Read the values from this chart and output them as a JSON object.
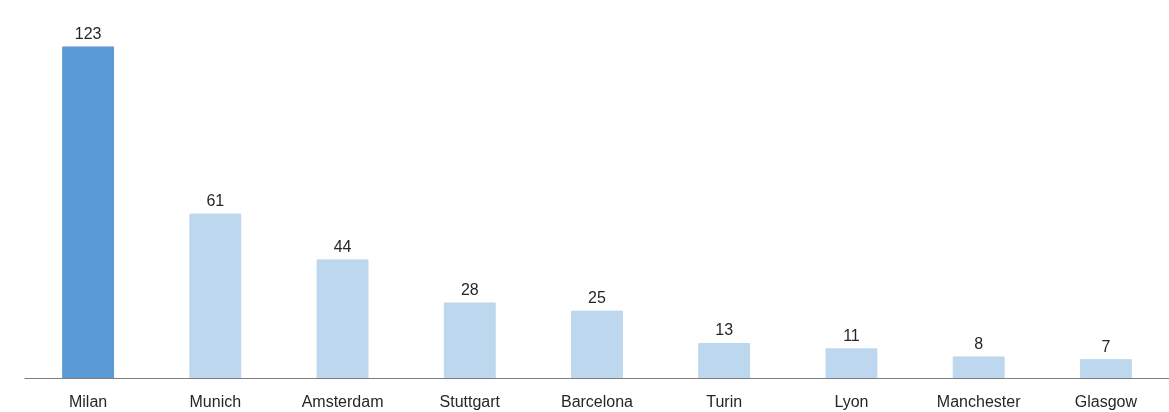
{
  "chart_data": {
    "type": "bar",
    "categories": [
      "Milan",
      "Munich",
      "Amsterdam",
      "Stuttgart",
      "Barcelona",
      "Turin",
      "Lyon",
      "Manchester",
      "Glasgow"
    ],
    "values": [
      123,
      61,
      44,
      28,
      25,
      13,
      11,
      8,
      7
    ],
    "colors": [
      "#5b9bd5",
      "#bdd7ee",
      "#bdd7ee",
      "#bdd7ee",
      "#bdd7ee",
      "#bdd7ee",
      "#bdd7ee",
      "#bdd7ee",
      "#bdd7ee"
    ],
    "data_labels": true
  }
}
